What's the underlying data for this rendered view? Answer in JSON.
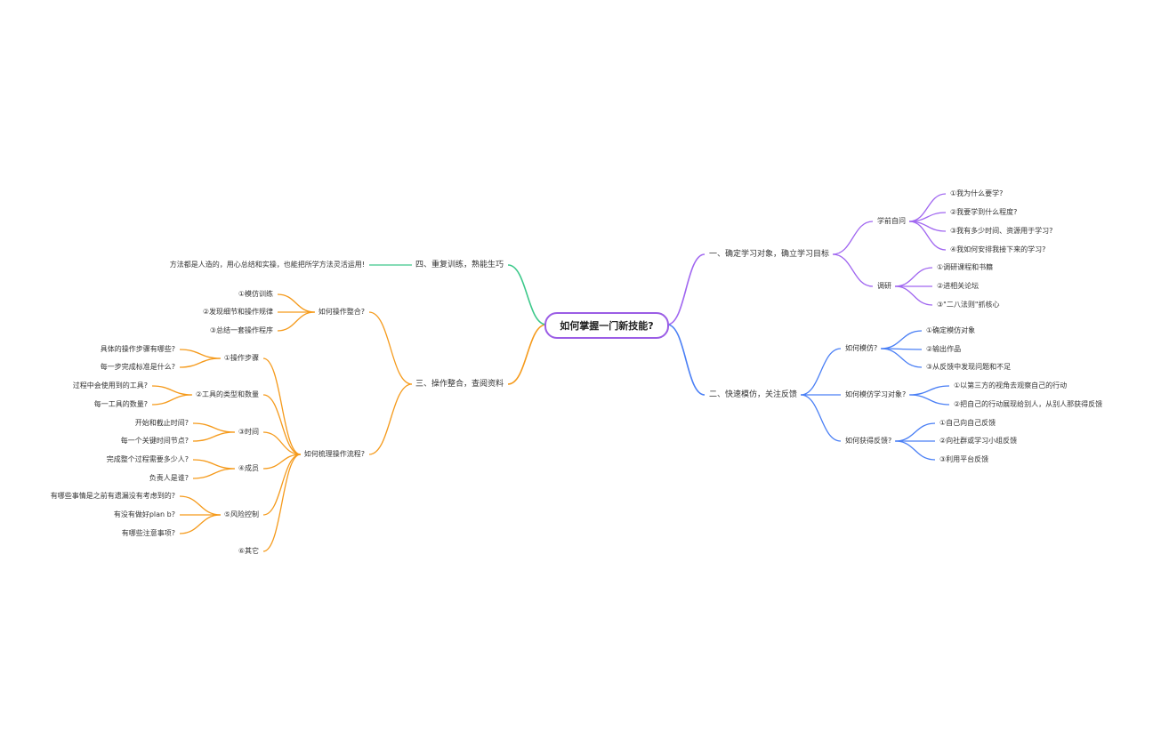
{
  "colors": {
    "purple": "#a066f0",
    "blue": "#4a7ff5",
    "orange": "#f59a1b",
    "green": "#3cc88a"
  },
  "root": {
    "label": "如何掌握一门新技能?",
    "children": [
      {
        "label": "一、确定学习对象，确立学习目标",
        "children": [
          {
            "label": "学前自问",
            "children": [
              {
                "label": "①我为什么要学?"
              },
              {
                "label": "②我要学到什么程度?"
              },
              {
                "label": "③我有多少时间、资源用于学习?"
              },
              {
                "label": "④我如何安排我接下来的学习?"
              }
            ]
          },
          {
            "label": "调研",
            "children": [
              {
                "label": "①调研课程和书籍"
              },
              {
                "label": "②进相关论坛"
              },
              {
                "label": "③\"二八法则\"抓核心"
              }
            ]
          }
        ]
      },
      {
        "label": "二、快速模仿，关注反馈",
        "children": [
          {
            "label": "如何模仿?",
            "children": [
              {
                "label": "①确定模仿对象"
              },
              {
                "label": "②输出作品"
              },
              {
                "label": "③从反馈中发现问题和不足"
              }
            ]
          },
          {
            "label": "如何模仿学习对象?",
            "children": [
              {
                "label": "①以第三方的视角去观察自己的行动"
              },
              {
                "label": "②把自己的行动展现给别人，从别人那获得反馈"
              }
            ]
          },
          {
            "label": "如何获得反馈?",
            "children": [
              {
                "label": "①自己向自己反馈"
              },
              {
                "label": "②向社群或学习小组反馈"
              },
              {
                "label": "③利用平台反馈"
              }
            ]
          }
        ]
      },
      {
        "label": "三、操作整合，查阅资料",
        "children": [
          {
            "label": "如何操作整合?",
            "children": [
              {
                "label": "①模仿训练"
              },
              {
                "label": "②发现细节和操作规律"
              },
              {
                "label": "③总结一套操作程序"
              }
            ]
          },
          {
            "label": "如何梳理操作流程?",
            "children": [
              {
                "label": "①操作步骤",
                "children": [
                  {
                    "label": "具体的操作步骤有哪些?"
                  },
                  {
                    "label": "每一步完成标准是什么?"
                  }
                ]
              },
              {
                "label": "②工具的类型和数量",
                "children": [
                  {
                    "label": "过程中会使用到的工具?"
                  },
                  {
                    "label": "每一工具的数量?"
                  }
                ]
              },
              {
                "label": "③时间",
                "children": [
                  {
                    "label": "开始和截止时间?"
                  },
                  {
                    "label": "每一个关键时间节点?"
                  }
                ]
              },
              {
                "label": "④成员",
                "children": [
                  {
                    "label": "完成整个过程需要多少人?"
                  },
                  {
                    "label": "负责人是谁?"
                  }
                ]
              },
              {
                "label": "⑤风险控制",
                "children": [
                  {
                    "label": "有哪些事情是之前有遗漏没有考虑到的?"
                  },
                  {
                    "label": "有没有做好plan b?"
                  },
                  {
                    "label": "有哪些注意事项?"
                  }
                ]
              },
              {
                "label": "⑥其它"
              }
            ]
          }
        ]
      },
      {
        "label": "四、重复训练，熟能生巧",
        "children": [
          {
            "label": "方法都是人造的，用心总结和实操，也能把所学方法灵活运用!"
          }
        ]
      }
    ]
  }
}
